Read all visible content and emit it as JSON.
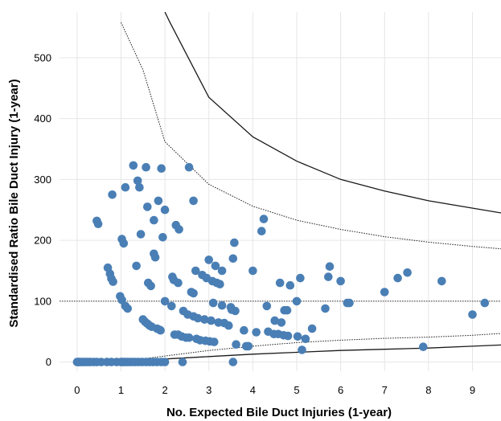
{
  "chart_data": {
    "type": "scatter",
    "xlabel": "No. Expected Bile Duct Injuries (1-year)",
    "ylabel": "Standardised Ratio Bile Duct Injury (1-year)",
    "xlim": [
      -0.4,
      9.65
    ],
    "ylim": [
      -15,
      575
    ],
    "x_ticks": [
      0,
      1,
      2,
      3,
      4,
      5,
      6,
      7,
      8,
      9
    ],
    "y_ticks": [
      0,
      100,
      200,
      300,
      400,
      500
    ],
    "grid": true,
    "reference_line": {
      "y": 100,
      "style": "dotted"
    },
    "funnel_limits": [
      {
        "style": "solid",
        "upper": [
          [
            2.0,
            575
          ],
          [
            2.1,
            560
          ],
          [
            3.0,
            435
          ],
          [
            4.0,
            370
          ],
          [
            5.0,
            330
          ],
          [
            6.0,
            300
          ],
          [
            7.0,
            281
          ],
          [
            8.0,
            265
          ],
          [
            9.65,
            245
          ]
        ],
        "lower": [
          [
            1.0,
            0
          ],
          [
            2.0,
            5
          ],
          [
            3.0,
            9
          ],
          [
            4.0,
            13
          ],
          [
            5.0,
            16
          ],
          [
            6.0,
            19
          ],
          [
            7.0,
            21
          ],
          [
            8.0,
            23
          ],
          [
            9.0,
            26
          ],
          [
            9.65,
            28
          ]
        ]
      },
      {
        "style": "dotted",
        "upper": [
          [
            1.0,
            558
          ],
          [
            1.5,
            480
          ],
          [
            2.0,
            362
          ],
          [
            3.0,
            292
          ],
          [
            4.0,
            256
          ],
          [
            5.0,
            233
          ],
          [
            6.0,
            218
          ],
          [
            7.0,
            206
          ],
          [
            8.0,
            197
          ],
          [
            9.0,
            190
          ],
          [
            9.65,
            186
          ]
        ],
        "lower": [
          [
            0.95,
            0
          ],
          [
            2.0,
            10
          ],
          [
            3.0,
            19
          ],
          [
            4.0,
            26
          ],
          [
            5.0,
            32
          ],
          [
            6.0,
            36
          ],
          [
            7.0,
            39
          ],
          [
            8.0,
            41
          ],
          [
            9.0,
            44
          ],
          [
            9.65,
            47
          ]
        ]
      }
    ],
    "points": [
      [
        0.0,
        0
      ],
      [
        0.02,
        0
      ],
      [
        0.05,
        0
      ],
      [
        0.08,
        0
      ],
      [
        0.12,
        0
      ],
      [
        0.16,
        0
      ],
      [
        0.2,
        0
      ],
      [
        0.25,
        0
      ],
      [
        0.3,
        0
      ],
      [
        0.38,
        0
      ],
      [
        0.45,
        0
      ],
      [
        0.55,
        0
      ],
      [
        0.68,
        0
      ],
      [
        0.78,
        0
      ],
      [
        0.9,
        0
      ],
      [
        1.0,
        0
      ],
      [
        1.02,
        0
      ],
      [
        1.06,
        0
      ],
      [
        1.1,
        0
      ],
      [
        1.15,
        0
      ],
      [
        1.2,
        0
      ],
      [
        1.26,
        0
      ],
      [
        1.33,
        0
      ],
      [
        1.4,
        0
      ],
      [
        1.48,
        0
      ],
      [
        1.57,
        0
      ],
      [
        1.65,
        0
      ],
      [
        1.73,
        0
      ],
      [
        1.82,
        0
      ],
      [
        1.92,
        0
      ],
      [
        2.0,
        0
      ],
      [
        2.4,
        0
      ],
      [
        3.55,
        0
      ],
      [
        0.45,
        232
      ],
      [
        0.48,
        227
      ],
      [
        0.7,
        155
      ],
      [
        0.75,
        145
      ],
      [
        0.78,
        137
      ],
      [
        0.82,
        132
      ],
      [
        0.8,
        275
      ],
      [
        0.98,
        108
      ],
      [
        1.02,
        102
      ],
      [
        1.1,
        92
      ],
      [
        1.15,
        88
      ],
      [
        1.02,
        202
      ],
      [
        1.06,
        195
      ],
      [
        1.1,
        287
      ],
      [
        1.28,
        323
      ],
      [
        1.35,
        158
      ],
      [
        1.38,
        298
      ],
      [
        1.42,
        287
      ],
      [
        1.45,
        210
      ],
      [
        1.5,
        70
      ],
      [
        1.55,
        66
      ],
      [
        1.6,
        63
      ],
      [
        1.62,
        130
      ],
      [
        1.65,
        60
      ],
      [
        1.68,
        125
      ],
      [
        1.6,
        255
      ],
      [
        1.57,
        320
      ],
      [
        1.7,
        58
      ],
      [
        1.75,
        233
      ],
      [
        1.75,
        178
      ],
      [
        1.78,
        172
      ],
      [
        1.82,
        55
      ],
      [
        1.85,
        265
      ],
      [
        1.88,
        53
      ],
      [
        1.9,
        52
      ],
      [
        1.92,
        318
      ],
      [
        1.95,
        205
      ],
      [
        2.0,
        250
      ],
      [
        2.0,
        100
      ],
      [
        2.15,
        92
      ],
      [
        2.17,
        140
      ],
      [
        2.2,
        135
      ],
      [
        2.22,
        45
      ],
      [
        2.25,
        225
      ],
      [
        2.3,
        130
      ],
      [
        2.3,
        45
      ],
      [
        2.32,
        218
      ],
      [
        2.38,
        42
      ],
      [
        2.42,
        84
      ],
      [
        2.48,
        40
      ],
      [
        2.52,
        78
      ],
      [
        2.55,
        320
      ],
      [
        2.55,
        40
      ],
      [
        2.6,
        115
      ],
      [
        2.65,
        113
      ],
      [
        2.65,
        265
      ],
      [
        2.65,
        75
      ],
      [
        2.7,
        150
      ],
      [
        2.72,
        38
      ],
      [
        2.75,
        72
      ],
      [
        2.8,
        36
      ],
      [
        2.85,
        143
      ],
      [
        2.9,
        70
      ],
      [
        2.92,
        35
      ],
      [
        2.95,
        138
      ],
      [
        3.0,
        168
      ],
      [
        3.02,
        34
      ],
      [
        3.05,
        68
      ],
      [
        3.08,
        133
      ],
      [
        3.1,
        97
      ],
      [
        3.12,
        33
      ],
      [
        3.15,
        158
      ],
      [
        3.18,
        130
      ],
      [
        3.22,
        65
      ],
      [
        3.25,
        128
      ],
      [
        3.3,
        150
      ],
      [
        3.3,
        93
      ],
      [
        3.35,
        64
      ],
      [
        3.45,
        60
      ],
      [
        3.5,
        90
      ],
      [
        3.52,
        86
      ],
      [
        3.55,
        170
      ],
      [
        3.58,
        196
      ],
      [
        3.6,
        84
      ],
      [
        3.62,
        29
      ],
      [
        3.8,
        52
      ],
      [
        3.85,
        26
      ],
      [
        3.9,
        26
      ],
      [
        4.0,
        150
      ],
      [
        4.08,
        49
      ],
      [
        4.2,
        215
      ],
      [
        4.25,
        235
      ],
      [
        4.32,
        92
      ],
      [
        4.35,
        50
      ],
      [
        4.48,
        46
      ],
      [
        4.5,
        68
      ],
      [
        4.58,
        46
      ],
      [
        4.62,
        130
      ],
      [
        4.65,
        65
      ],
      [
        4.7,
        44
      ],
      [
        4.72,
        85
      ],
      [
        4.78,
        85
      ],
      [
        4.8,
        43
      ],
      [
        4.85,
        126
      ],
      [
        5.0,
        100
      ],
      [
        5.02,
        42
      ],
      [
        5.08,
        138
      ],
      [
        5.12,
        20
      ],
      [
        5.2,
        38
      ],
      [
        5.35,
        55
      ],
      [
        5.65,
        88
      ],
      [
        5.72,
        140
      ],
      [
        5.75,
        157
      ],
      [
        6.0,
        133
      ],
      [
        6.15,
        97
      ],
      [
        6.2,
        97
      ],
      [
        7.0,
        115
      ],
      [
        7.3,
        138
      ],
      [
        7.52,
        147
      ],
      [
        7.88,
        25
      ],
      [
        8.3,
        133
      ],
      [
        9.0,
        78
      ],
      [
        9.28,
        97
      ]
    ],
    "point_color": "#4a7fb5",
    "line_color": "#1a1a1a"
  }
}
